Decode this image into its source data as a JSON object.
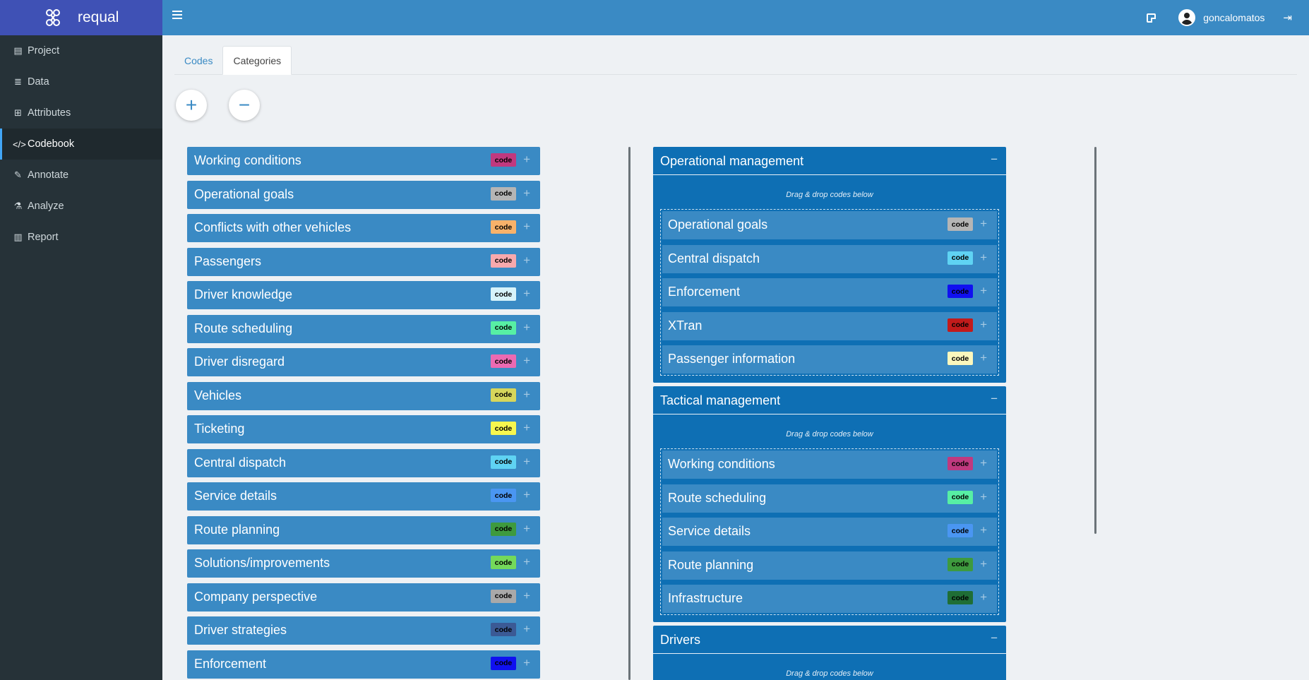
{
  "app": {
    "name": "requal"
  },
  "sidebar": {
    "items": [
      {
        "label": "Project",
        "icon": "book-icon",
        "glyph": "▤"
      },
      {
        "label": "Data",
        "icon": "database-icon",
        "glyph": "≣"
      },
      {
        "label": "Attributes",
        "icon": "table-icon",
        "glyph": "⊞"
      },
      {
        "label": "Codebook",
        "icon": "code-icon",
        "glyph": "</>"
      },
      {
        "label": "Annotate",
        "icon": "marker-icon",
        "glyph": "✎"
      },
      {
        "label": "Analyze",
        "icon": "microscope-icon",
        "glyph": "⚗"
      },
      {
        "label": "Report",
        "icon": "chart-icon",
        "glyph": "▥"
      }
    ],
    "active": "Codebook"
  },
  "topbar": {
    "username": "goncalomatos"
  },
  "tabs": [
    {
      "label": "Codes"
    },
    {
      "label": "Categories"
    }
  ],
  "actions": {
    "add": "+",
    "remove": "−"
  },
  "badge_text": "code",
  "plus": "+",
  "collapse": "−",
  "codes": [
    {
      "label": "Working conditions",
      "color": "#c0397f"
    },
    {
      "label": "Operational goals",
      "color": "#b5b5b5"
    },
    {
      "label": "Conflicts with other vehicles",
      "color": "#f8b26a"
    },
    {
      "label": "Passengers",
      "color": "#f8a9ad"
    },
    {
      "label": "Driver knowledge",
      "color": "#d7f3fa"
    },
    {
      "label": "Route scheduling",
      "color": "#57efa4"
    },
    {
      "label": "Driver disregard",
      "color": "#ec6ab2"
    },
    {
      "label": "Vehicles",
      "color": "#d6d65b"
    },
    {
      "label": "Ticketing",
      "color": "#f7f74e"
    },
    {
      "label": "Central dispatch",
      "color": "#5fd3f3"
    },
    {
      "label": "Service details",
      "color": "#4a96f2"
    },
    {
      "label": "Route planning",
      "color": "#3e9a3e"
    },
    {
      "label": "Solutions/improvements",
      "color": "#74d95a"
    },
    {
      "label": "Company perspective",
      "color": "#a9a9a9"
    },
    {
      "label": "Driver strategies",
      "color": "#3b5a95"
    },
    {
      "label": "Enforcement",
      "color": "#1010f0"
    }
  ],
  "categories": [
    {
      "title": "Operational management",
      "hint": "Drag & drop codes below",
      "codes": [
        {
          "label": "Operational goals",
          "color": "#b5b5b5"
        },
        {
          "label": "Central dispatch",
          "color": "#5fd3f3"
        },
        {
          "label": "Enforcement",
          "color": "#1010f0"
        },
        {
          "label": "XTran",
          "color": "#c21b1b"
        },
        {
          "label": "Passenger information",
          "color": "#fbf7bd"
        }
      ]
    },
    {
      "title": "Tactical management",
      "hint": "Drag & drop codes below",
      "codes": [
        {
          "label": "Working conditions",
          "color": "#c0397f"
        },
        {
          "label": "Route scheduling",
          "color": "#57efa4"
        },
        {
          "label": "Service details",
          "color": "#4a96f2"
        },
        {
          "label": "Route planning",
          "color": "#3e9a3e"
        },
        {
          "label": "Infrastructure",
          "color": "#1f6e35"
        }
      ]
    },
    {
      "title": "Drivers",
      "hint": "Drag & drop codes below",
      "codes": []
    }
  ]
}
